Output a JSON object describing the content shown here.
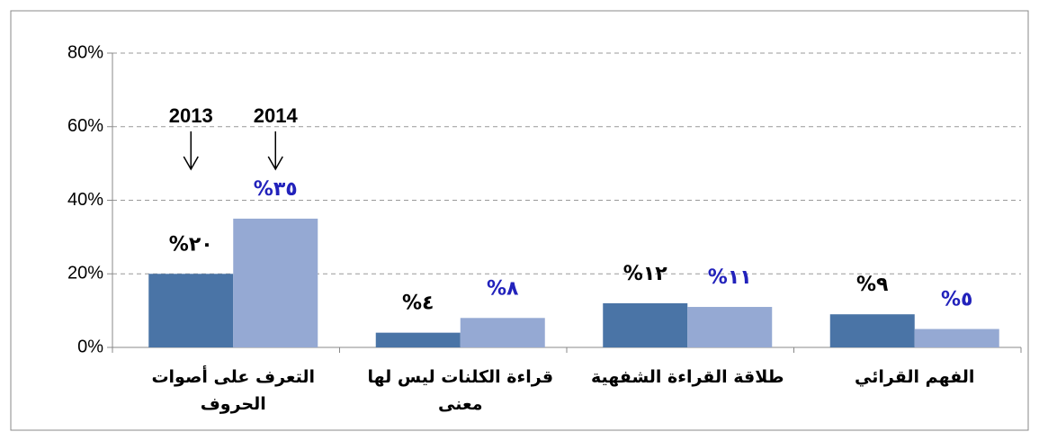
{
  "chart_data": {
    "type": "bar",
    "categories": [
      "التعرف على أصوات الحروف",
      "قراءة الكلنات ليس لها معنى",
      "طلاقة القراءة الشفهية",
      "الفهم القرائي"
    ],
    "series": [
      {
        "name": "2013",
        "color": "#4a74a6",
        "label_color": "#000000",
        "values": [
          20,
          4,
          12,
          9
        ],
        "value_labels": [
          "%٢٠",
          "%٤",
          "%١٢",
          "%٩"
        ]
      },
      {
        "name": "2014",
        "color": "#95a9d3",
        "label_color": "#2222bb",
        "values": [
          35,
          8,
          11,
          5
        ],
        "value_labels": [
          "%٣٥",
          "%٨",
          "%١١",
          "%٥"
        ]
      }
    ],
    "ylim": [
      0,
      80
    ],
    "yticks": [
      {
        "value": 0,
        "label": "0%"
      },
      {
        "value": 20,
        "label": "20%"
      },
      {
        "value": 40,
        "label": "40%"
      },
      {
        "value": 60,
        "label": "60%"
      },
      {
        "value": 80,
        "label": "80%"
      }
    ],
    "grid": true
  }
}
